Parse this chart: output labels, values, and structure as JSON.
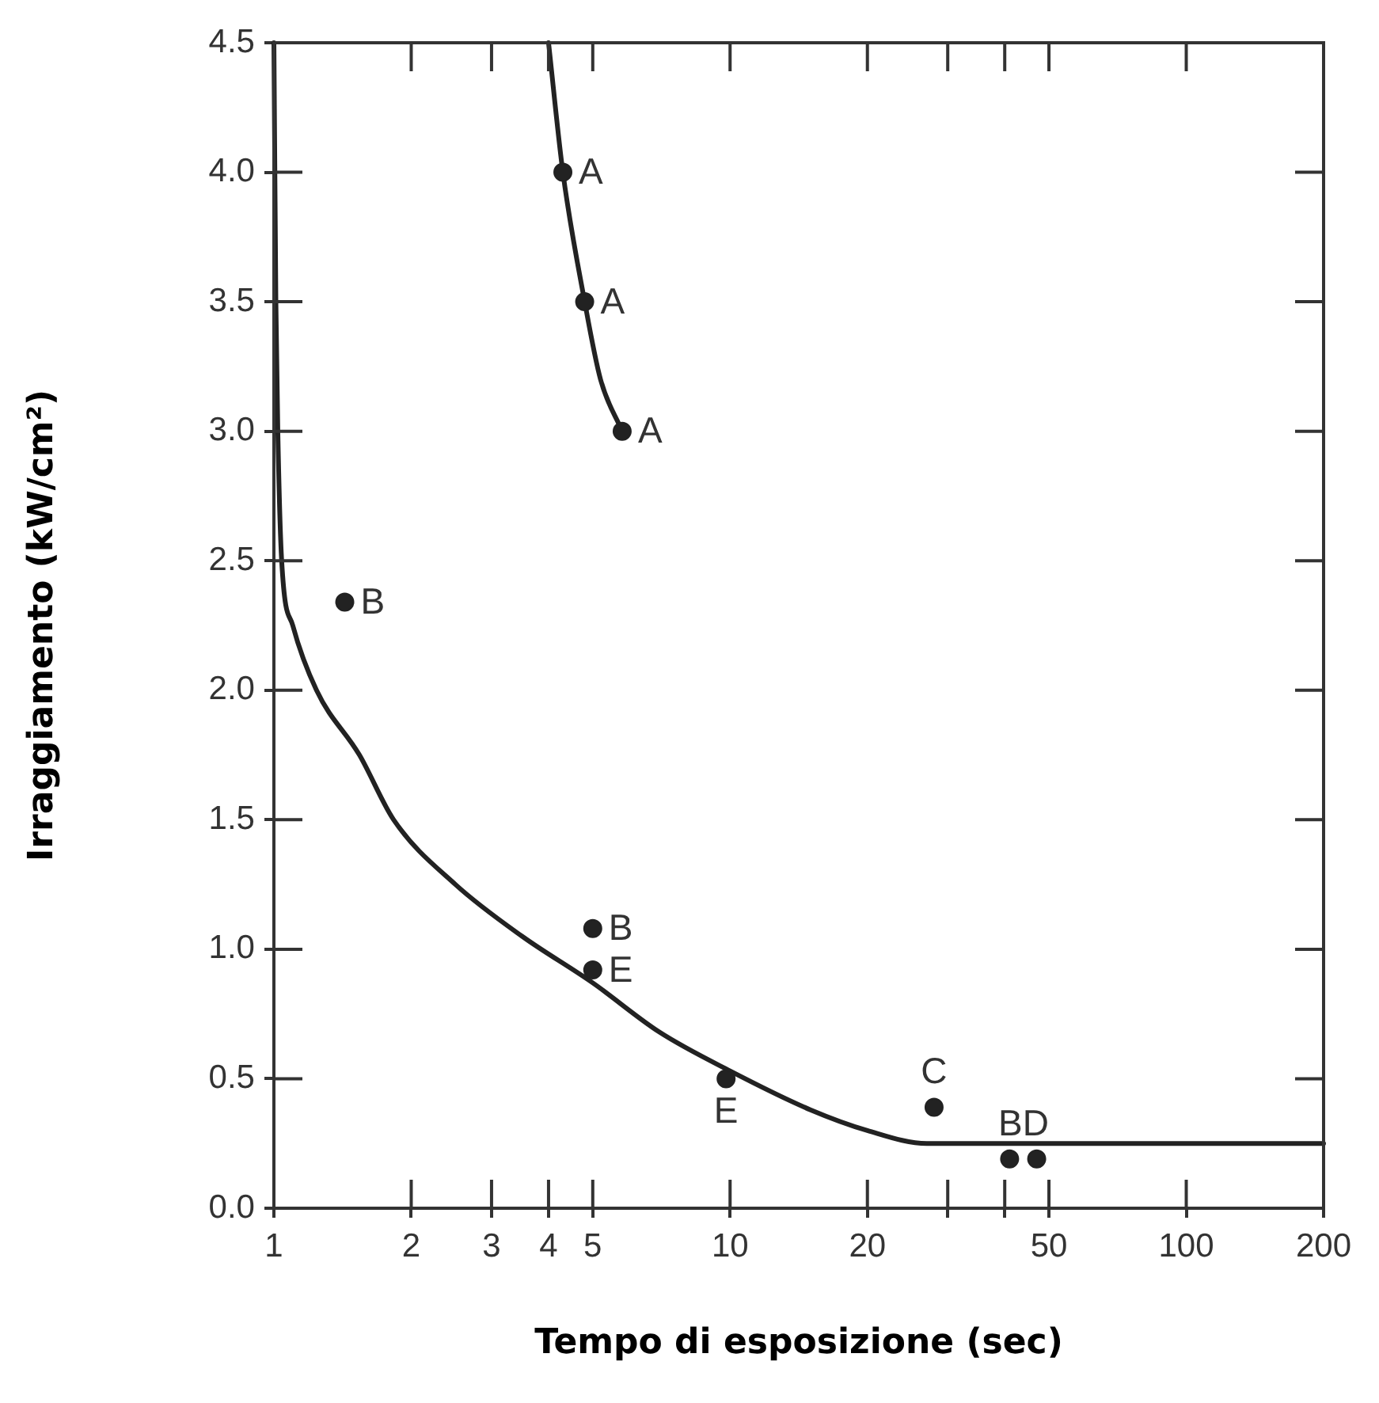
{
  "chart_data": {
    "type": "scatter",
    "xlabel": "Tempo di esposizione (sec)",
    "ylabel": "Irraggiamento (kW/cm²)",
    "log": "x",
    "grid": false,
    "legend": false,
    "marker": "circle",
    "xlim": [
      1,
      200
    ],
    "ylim": [
      0,
      4.5
    ],
    "xticks": [
      1,
      2,
      3,
      4,
      5,
      10,
      20,
      {
        "value": 30,
        "label": null
      },
      {
        "value": 40,
        "label": null
      },
      50,
      100,
      200
    ],
    "yticks": [
      {
        "value": 0,
        "label": "0.0"
      },
      0.5,
      {
        "value": 1,
        "label": "1.0"
      },
      1.5,
      {
        "value": 2,
        "label": "2.0"
      },
      2.5,
      {
        "value": 3,
        "label": "3.0"
      },
      3.5,
      {
        "value": 4,
        "label": "4.0"
      },
      4.5
    ],
    "series": [
      {
        "color": "#222222",
        "x": [
          4.3,
          4.8,
          5.8,
          1.43,
          5,
          5,
          9.8,
          28,
          41,
          47
        ],
        "values": [
          4.0,
          3.5,
          3.0,
          2.34,
          1.08,
          0.92,
          0.5,
          0.39,
          0.19,
          0.19
        ]
      },
      {
        "type": "line",
        "marker": "none",
        "color": "#222222",
        "x": [
          4.0,
          4.3,
          4.8,
          5.2,
          5.8
        ],
        "values": [
          4.5,
          4.0,
          3.5,
          3.2,
          3.0
        ]
      },
      {
        "type": "line",
        "marker": "none",
        "color": "#222222",
        "x": [
          1,
          1.01,
          1.02,
          1.04,
          1.1,
          1.24,
          1.54,
          1.83,
          2.5,
          3.5,
          5,
          7,
          10,
          15,
          20,
          27,
          200
        ],
        "values": [
          4.5,
          3.5,
          3.0,
          2.5,
          2.25,
          2.0,
          1.75,
          1.5,
          1.25,
          1.05,
          0.87,
          0.68,
          0.53,
          0.38,
          0.3,
          0.25,
          0.25
        ]
      }
    ],
    "annotations": [
      {
        "text": "A",
        "x": 4.3,
        "y": 4.0
      },
      {
        "text": "A",
        "x": 4.8,
        "y": 3.5
      },
      {
        "text": "A",
        "x": 5.8,
        "y": 3.0
      },
      {
        "text": "B",
        "x": 1.43,
        "y": 2.34
      },
      {
        "text": "B",
        "x": 5,
        "y": 1.08
      },
      {
        "text": "E",
        "x": 5,
        "y": 0.92
      },
      {
        "text": "E",
        "x": 9.8,
        "y": 0.5
      },
      {
        "text": "C",
        "x": 28,
        "y": 0.39
      },
      {
        "text": "BD",
        "x": 44,
        "y": 0.19
      }
    ]
  }
}
